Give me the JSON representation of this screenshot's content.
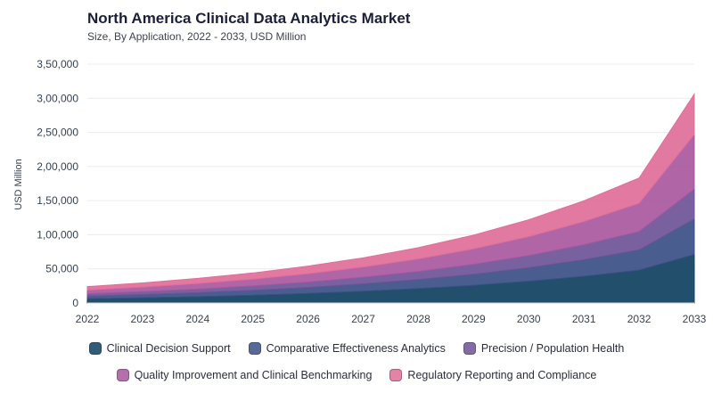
{
  "chart_data": {
    "type": "area",
    "stacked": true,
    "title": "North America Clinical Data Analytics Market",
    "subtitle": "Size, By Application, 2022 - 2033, USD Million",
    "xlabel": "",
    "ylabel": "USD Million",
    "x": [
      "2022",
      "2023",
      "2024",
      "2025",
      "2026",
      "2027",
      "2028",
      "2029",
      "2030",
      "2031",
      "2032",
      "2033"
    ],
    "ylim": [
      0,
      350000
    ],
    "yticks": [
      0,
      50000,
      100000,
      150000,
      200000,
      250000,
      300000,
      350000
    ],
    "ytick_labels": [
      "0",
      "50,000",
      "1,00,000",
      "1,50,000",
      "2,00,000",
      "2,50,000",
      "3,00,000",
      "3,50,000"
    ],
    "grid": true,
    "legend_position": "bottom",
    "series": [
      {
        "name": "Clinical Decision Support",
        "color": "#0e4060",
        "values": [
          6000,
          7500,
          9200,
          11300,
          13900,
          17100,
          21000,
          25800,
          31800,
          39000,
          48000,
          71000
        ]
      },
      {
        "name": "Comparative Effectiveness Analytics",
        "color": "#3b4f86",
        "values": [
          4000,
          4800,
          5900,
          7200,
          8800,
          10800,
          13200,
          16200,
          19800,
          24300,
          29700,
          52000
        ]
      },
      {
        "name": "Precision / Population Health",
        "color": "#6e5396",
        "values": [
          3500,
          4300,
          5300,
          6500,
          8000,
          9800,
          12000,
          14700,
          18000,
          22100,
          27000,
          44000
        ]
      },
      {
        "name": "Quality Improvement and Clinical Benchmarking",
        "color": "#a8589e",
        "values": [
          5500,
          6700,
          8200,
          10000,
          12300,
          15000,
          18400,
          22600,
          27700,
          34000,
          41500,
          80000
        ]
      },
      {
        "name": "Regulatory Reporting and Compliance",
        "color": "#e06e99",
        "values": [
          5000,
          6100,
          7400,
          9000,
          11000,
          13500,
          16500,
          20200,
          24700,
          30300,
          37000,
          59000
        ]
      }
    ]
  }
}
